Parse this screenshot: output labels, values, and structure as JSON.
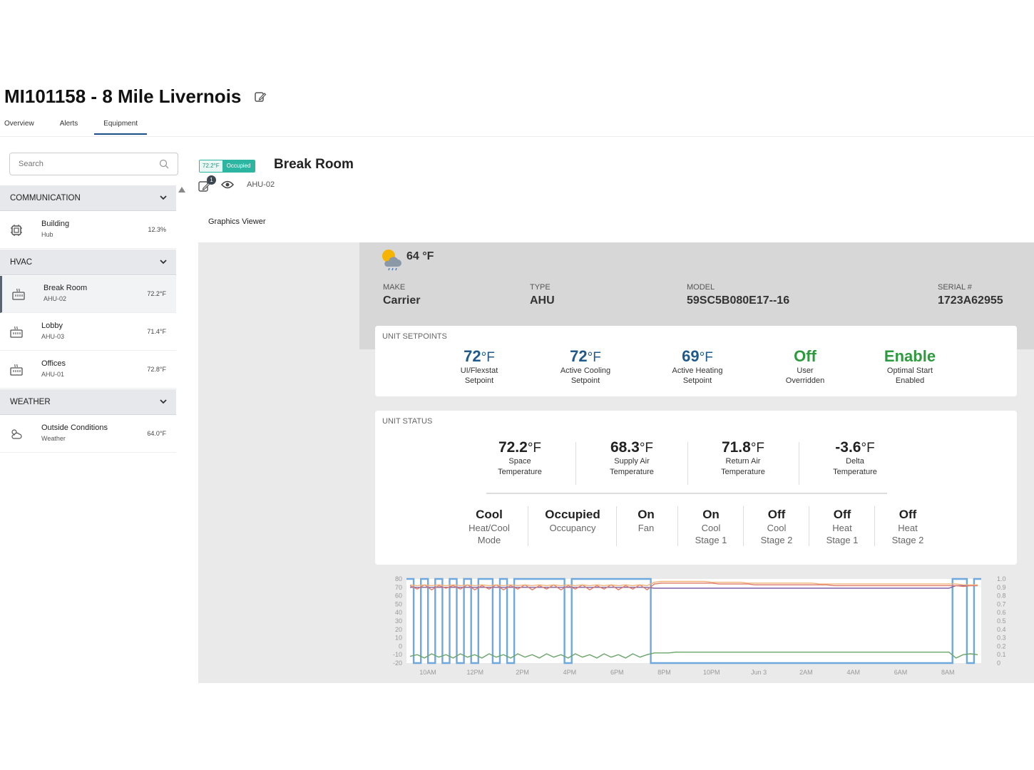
{
  "header": {
    "title": "MI101158 - 8 Mile Livernois",
    "tabs": [
      {
        "label": "Overview"
      },
      {
        "label": "Alerts"
      },
      {
        "label": "Equipment",
        "active": true
      }
    ]
  },
  "sidebar": {
    "search_placeholder": "Search",
    "groups": [
      {
        "label": "COMMUNICATION",
        "items": [
          {
            "name": "Building",
            "sub": "Hub",
            "value": "12.3%",
            "icon": "hub-icon"
          }
        ]
      },
      {
        "label": "HVAC",
        "items": [
          {
            "name": "Break Room",
            "sub": "AHU-02",
            "value": "72.2°F",
            "icon": "ahu-icon",
            "selected": true
          },
          {
            "name": "Lobby",
            "sub": "AHU-03",
            "value": "71.4°F",
            "icon": "ahu-icon"
          },
          {
            "name": "Offices",
            "sub": "AHU-01",
            "value": "72.8°F",
            "icon": "ahu-icon"
          }
        ]
      },
      {
        "label": "WEATHER",
        "items": [
          {
            "name": "Outside Conditions",
            "sub": "Weather",
            "value": "64.0°F",
            "icon": "weather-icon"
          }
        ]
      }
    ]
  },
  "unit": {
    "badge_temp": "72.2°F",
    "badge_status": "Occupied",
    "name": "Break Room",
    "notification_count": "1",
    "id": "AHU-02",
    "view_label": "Graphics Viewer"
  },
  "weather": {
    "temp": "64 °F"
  },
  "info": {
    "make_label": "MAKE",
    "make": "Carrier",
    "type_label": "TYPE",
    "type": "AHU",
    "model_label": "MODEL",
    "model": "59SC5B080E17--16",
    "serial_label": "SERIAL #",
    "serial": "1723A62955"
  },
  "setpoints": {
    "title": "UNIT SETPOINTS",
    "items": [
      {
        "value": "72",
        "unit": "°F",
        "label1": "UI/Flexstat",
        "label2": "Setpoint"
      },
      {
        "value": "72",
        "unit": "°F",
        "label1": "Active Cooling",
        "label2": "Setpoint"
      },
      {
        "value": "69",
        "unit": "°F",
        "label1": "Active Heating",
        "label2": "Setpoint"
      },
      {
        "value": "Off",
        "unit": "",
        "label1": "User",
        "label2": "Overridden",
        "green": true
      },
      {
        "value": "Enable",
        "unit": "",
        "label1": "Optimal Start",
        "label2": "Enabled",
        "green": true
      }
    ]
  },
  "status": {
    "title": "UNIT STATUS",
    "temps": [
      {
        "value": "72.2",
        "unit": "°F",
        "label1": "Space",
        "label2": "Temperature"
      },
      {
        "value": "68.3",
        "unit": "°F",
        "label1": "Supply Air",
        "label2": "Temperature"
      },
      {
        "value": "71.8",
        "unit": "°F",
        "label1": "Return Air",
        "label2": "Temperature"
      },
      {
        "value": "-3.6",
        "unit": "°F",
        "label1": "Delta",
        "label2": "Temperature"
      }
    ],
    "modes": [
      {
        "value": "Cool",
        "label1": "Heat/Cool",
        "label2": "Mode"
      },
      {
        "value": "Occupied",
        "label1": "Occupancy",
        "label2": ""
      },
      {
        "value": "On",
        "label1": "Fan",
        "label2": ""
      },
      {
        "value": "On",
        "label1": "Cool",
        "label2": "Stage 1"
      },
      {
        "value": "Off",
        "label1": "Cool",
        "label2": "Stage 2"
      },
      {
        "value": "Off",
        "label1": "Heat",
        "label2": "Stage 1"
      },
      {
        "value": "Off",
        "label1": "Heat",
        "label2": "Stage 2"
      }
    ]
  },
  "chart_data": {
    "type": "line",
    "x_ticks": [
      "10AM",
      "12PM",
      "2PM",
      "4PM",
      "6PM",
      "8PM",
      "10PM",
      "Jun 3",
      "2AM",
      "4AM",
      "6AM",
      "8AM"
    ],
    "y_left_ticks": [
      "80",
      "70",
      "60",
      "50",
      "40",
      "30",
      "20",
      "10",
      "0",
      "-10",
      "-20"
    ],
    "y_right_ticks": [
      "1.0",
      "0.9",
      "0.8",
      "0.7",
      "0.6",
      "0.5",
      "0.4",
      "0.3",
      "0.2",
      "0.1",
      "0"
    ],
    "ylim_left": [
      -20,
      80
    ],
    "ylim_right": [
      0,
      1
    ],
    "series": [
      {
        "color": "#6fa8dc",
        "axis": "right",
        "description_kind": "binary-cycling",
        "values": [
          1,
          0,
          1,
          0,
          1,
          0,
          1,
          0,
          1,
          0,
          1,
          1,
          0,
          1,
          0,
          1,
          1,
          1,
          1,
          1,
          1,
          1,
          0,
          1,
          1,
          1,
          1,
          1,
          1,
          1,
          1,
          1,
          1,
          1,
          0,
          0,
          0,
          0,
          0,
          0,
          0,
          0,
          0,
          0,
          0,
          0,
          0,
          0,
          0,
          0,
          0,
          0,
          0,
          0,
          0,
          0,
          0,
          0,
          0,
          0,
          0,
          0,
          0,
          0,
          0,
          0,
          0,
          0,
          0,
          0,
          0,
          0,
          0,
          0,
          0,
          0,
          1,
          1,
          0,
          1
        ]
      },
      {
        "color": "#7b5ea7",
        "axis": "left",
        "values": [
          70,
          70,
          70,
          70,
          70,
          70,
          70,
          70,
          70,
          70,
          70,
          70,
          70,
          70,
          70,
          70,
          70,
          70,
          70,
          70,
          70,
          70,
          70,
          70,
          70,
          70,
          70,
          70,
          70,
          70,
          70,
          70,
          70,
          70,
          69,
          69,
          69,
          69,
          69,
          69,
          69,
          69,
          69,
          69,
          69,
          69,
          69,
          69,
          69,
          69,
          69,
          69,
          69,
          69,
          69,
          69,
          69,
          69,
          69,
          69,
          69,
          69,
          69,
          69,
          69,
          69,
          69,
          69,
          69,
          69,
          69,
          69,
          69,
          69,
          69,
          69,
          72,
          72,
          72,
          72
        ]
      },
      {
        "color": "#e07a6a",
        "axis": "left",
        "values": [
          72,
          68,
          73,
          67,
          72,
          69,
          72,
          68,
          73,
          67,
          72,
          68,
          73,
          67,
          72,
          68,
          73,
          67,
          72,
          68,
          73,
          67,
          72,
          68,
          73,
          67,
          72,
          68,
          73,
          67,
          72,
          68,
          73,
          67,
          74,
          75,
          75,
          75,
          75,
          75,
          75,
          75,
          75,
          74,
          74,
          74,
          74,
          74,
          73,
          73,
          73,
          73,
          73,
          73,
          73,
          73,
          73,
          73,
          73,
          72,
          72,
          72,
          72,
          72,
          72,
          72,
          72,
          72,
          72,
          72,
          72,
          72,
          72,
          72,
          72,
          72,
          72,
          71,
          72,
          72
        ]
      },
      {
        "color": "#f0b27a",
        "axis": "left",
        "values": [
          73,
          72,
          73,
          72,
          73,
          72,
          73,
          72,
          73,
          72,
          73,
          72,
          73,
          72,
          73,
          72,
          73,
          72,
          73,
          72,
          73,
          72,
          73,
          72,
          73,
          72,
          73,
          72,
          73,
          72,
          73,
          72,
          73,
          72,
          76,
          77,
          77,
          77,
          77,
          77,
          77,
          77,
          76,
          76,
          76,
          76,
          76,
          75,
          75,
          75,
          75,
          75,
          75,
          75,
          75,
          75,
          75,
          74,
          74,
          74,
          74,
          74,
          74,
          74,
          74,
          74,
          74,
          74,
          74,
          74,
          74,
          74,
          74,
          74,
          74,
          74,
          74,
          73,
          73,
          73
        ]
      },
      {
        "color": "#6aa56a",
        "axis": "left",
        "values": [
          -12,
          -10,
          -14,
          -9,
          -13,
          -10,
          -14,
          -9,
          -13,
          -10,
          -14,
          -9,
          -13,
          -10,
          -14,
          -9,
          -13,
          -10,
          -14,
          -9,
          -13,
          -10,
          -14,
          -9,
          -13,
          -10,
          -14,
          -9,
          -13,
          -10,
          -14,
          -9,
          -13,
          -10,
          -8,
          -8,
          -8,
          -7,
          -7,
          -7,
          -7,
          -7,
          -7,
          -7,
          -7,
          -7,
          -7,
          -7,
          -7,
          -7,
          -7,
          -7,
          -7,
          -7,
          -7,
          -7,
          -7,
          -7,
          -7,
          -7,
          -7,
          -7,
          -7,
          -7,
          -7,
          -7,
          -7,
          -7,
          -7,
          -7,
          -7,
          -7,
          -7,
          -7,
          -7,
          -7,
          -14,
          -10,
          -9,
          -10
        ]
      }
    ]
  }
}
